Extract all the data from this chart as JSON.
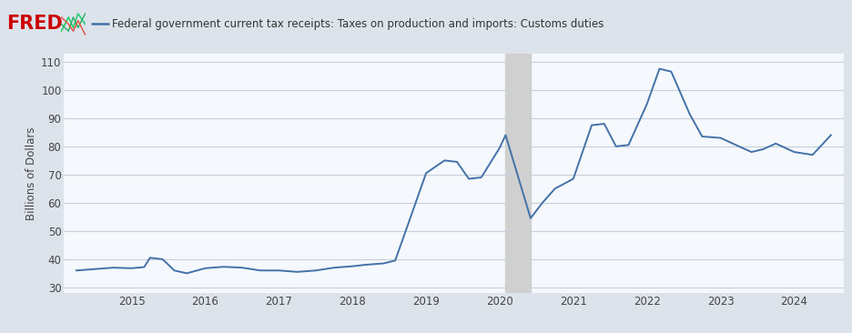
{
  "title": "Federal government current tax receipts: Taxes on production and imports: Customs duties",
  "ylabel": "Billions of Dollars",
  "line_color": "#4472a8",
  "background_color": "#dce3eb",
  "plot_bg_color": "#f5f8fc",
  "shade_color": "#d0d0d0",
  "shade_xmin": 2020.08,
  "shade_xmax": 2020.42,
  "ylim": [
    28,
    113
  ],
  "yticks": [
    30,
    40,
    50,
    60,
    70,
    80,
    90,
    100,
    110
  ],
  "grid_color": "#c8d0da",
  "data": {
    "x": [
      2014.25,
      2014.5,
      2014.75,
      2015.0,
      2015.17,
      2015.25,
      2015.42,
      2015.58,
      2015.75,
      2016.0,
      2016.25,
      2016.5,
      2016.75,
      2017.0,
      2017.25,
      2017.5,
      2017.75,
      2018.0,
      2018.17,
      2018.42,
      2018.58,
      2018.75,
      2019.0,
      2019.25,
      2019.42,
      2019.58,
      2019.75,
      2020.0,
      2020.08,
      2020.42,
      2020.58,
      2020.75,
      2021.0,
      2021.25,
      2021.42,
      2021.58,
      2021.75,
      2022.0,
      2022.17,
      2022.33,
      2022.58,
      2022.75,
      2023.0,
      2023.25,
      2023.42,
      2023.58,
      2023.75,
      2024.0,
      2024.25,
      2024.5
    ],
    "y": [
      36.0,
      36.5,
      37.0,
      36.8,
      37.2,
      40.5,
      40.0,
      36.0,
      35.0,
      36.8,
      37.3,
      37.0,
      36.0,
      36.0,
      35.5,
      36.0,
      37.0,
      37.5,
      38.0,
      38.5,
      39.5,
      52.0,
      70.5,
      75.0,
      74.5,
      68.5,
      69.0,
      79.5,
      84.0,
      54.5,
      60.0,
      65.0,
      68.5,
      87.5,
      88.0,
      80.0,
      80.5,
      95.0,
      107.5,
      106.5,
      91.5,
      83.5,
      83.0,
      80.0,
      78.0,
      79.0,
      81.0,
      78.0,
      77.0,
      84.0
    ]
  },
  "xlim": [
    2014.08,
    2024.67
  ],
  "xtick_labels": [
    "2015",
    "2016",
    "2017",
    "2018",
    "2019",
    "2020",
    "2021",
    "2022",
    "2023",
    "2024"
  ],
  "xtick_positions": [
    2015.0,
    2016.0,
    2017.0,
    2018.0,
    2019.0,
    2020.0,
    2021.0,
    2022.0,
    2023.0,
    2024.0
  ]
}
